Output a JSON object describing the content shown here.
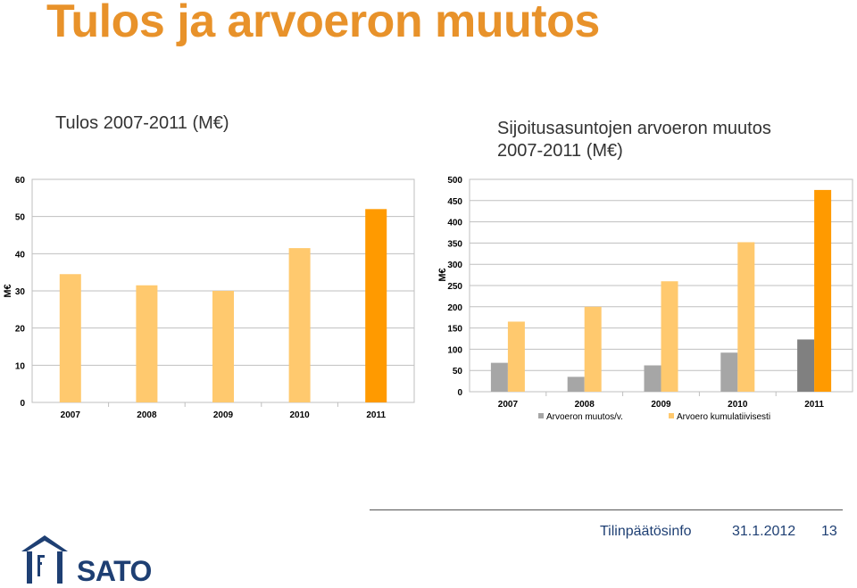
{
  "slide": {
    "title": "Tulos ja arvoeron muutos",
    "footer_label": "Tilinpäätösinfo",
    "footer_date": "31.1.2012",
    "page_number": "13",
    "logo_text": "SATO"
  },
  "colors": {
    "title": "#E8922A",
    "light_orange": "#FFC96E",
    "orange": "#FF9A00",
    "gray": "#A6A6A6",
    "dark_gray": "#808080",
    "footer": "#1E3F73"
  },
  "chart_data": [
    {
      "type": "bar",
      "title": "Tulos 2007-2011 (M€)",
      "ylabel": "M€",
      "categories": [
        "2007",
        "2008",
        "2009",
        "2010",
        "2011"
      ],
      "ylim": [
        0,
        60
      ],
      "yticks": [
        "0",
        "10",
        "20",
        "30",
        "40",
        "50",
        "60"
      ],
      "grid": true,
      "series": [
        {
          "values": [
            34.5,
            31.5,
            30,
            41.5,
            52
          ]
        }
      ]
    },
    {
      "type": "bar",
      "title": "Sijoitusasuntojen arvoeron muutos 2007-2011 (M€)",
      "ylabel": "M€",
      "categories": [
        "2007",
        "2008",
        "2009",
        "2010",
        "2011"
      ],
      "ylim": [
        0,
        500
      ],
      "yticks": [
        "0",
        "50",
        "100",
        "150",
        "200",
        "250",
        "300",
        "350",
        "400",
        "450",
        "500"
      ],
      "grid": true,
      "legend": "bottom",
      "series": [
        {
          "name": "Arvoeron muutos/v.",
          "values": [
            68,
            35,
            62,
            92,
            123
          ]
        },
        {
          "name": "Arvoero kumulatiivisesti",
          "values": [
            165,
            200,
            260,
            352,
            475
          ]
        }
      ]
    }
  ]
}
